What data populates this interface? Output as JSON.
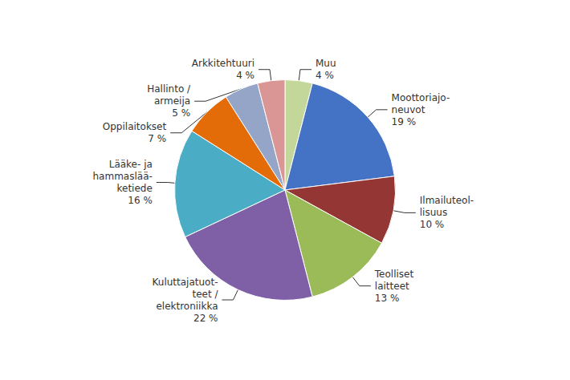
{
  "chart_data": {
    "type": "pie",
    "categories": [
      "Muu",
      "Moottoriajo-\nneuvot",
      "Ilmailuteol-\nlisuus",
      "Teolliset\nlaitteet",
      "Kuluttajatuot-\nteet /\nelektroniikka",
      "Lääke- ja\nhammaslää-\nketiede",
      "Oppilaitokset",
      "Hallinto /\narmeija",
      "Arkkitehtuuri"
    ],
    "values": [
      4,
      19,
      10,
      13,
      22,
      16,
      7,
      5,
      4
    ],
    "value_labels": [
      "4 %",
      "19 %",
      "10 %",
      "13 %",
      "22 %",
      "16 %",
      "7 %",
      "5 %",
      "4 %"
    ],
    "colors": [
      "#C4D79B",
      "#4472C4",
      "#943634",
      "#9BBB59",
      "#7F5FA6",
      "#4BACC6",
      "#E36C09",
      "#95A5C8",
      "#D99694"
    ],
    "data_labels": true
  }
}
